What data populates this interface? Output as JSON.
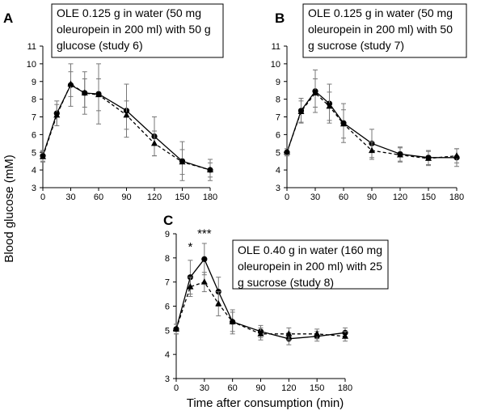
{
  "figure": {
    "ylabel": "Blood glucose (mM)",
    "xlabel": "Time after consumption (min)"
  },
  "chart_data": [
    {
      "panel": "A",
      "type": "line",
      "note_lines": [
        "OLE 0.125 g in water (50 mg",
        "oleuropein in 200 ml) with 50 g",
        "glucose (study 6)"
      ],
      "x": [
        0,
        15,
        30,
        45,
        60,
        90,
        120,
        150,
        180
      ],
      "xticks": [
        0,
        30,
        60,
        90,
        120,
        150,
        180
      ],
      "xlim": [
        0,
        180
      ],
      "ylim": [
        3,
        11
      ],
      "yticks": [
        3,
        4,
        5,
        6,
        7,
        8,
        9,
        10,
        11
      ],
      "series": [
        {
          "name": "solid-circle",
          "marker": "circle",
          "dash": false,
          "values": [
            4.8,
            7.2,
            8.8,
            8.35,
            8.3,
            7.35,
            5.9,
            4.5,
            4.0
          ],
          "errors": [
            0.3,
            0.7,
            1.2,
            1.2,
            1.7,
            1.5,
            1.1,
            1.1,
            0.6
          ]
        },
        {
          "name": "dashed-triangle",
          "marker": "triangle",
          "dash": true,
          "values": [
            4.75,
            7.1,
            8.85,
            8.35,
            8.25,
            7.1,
            5.5,
            4.45,
            4.0
          ],
          "errors": [
            0.3,
            0.6,
            0.7,
            0.8,
            0.9,
            0.8,
            0.7,
            0.7,
            0.4
          ]
        }
      ],
      "annotations": []
    },
    {
      "panel": "B",
      "type": "line",
      "note_lines": [
        "OLE 0.125 g in water (50 mg",
        "oleuropein in 200 ml) with 50",
        "g sucrose (study 7)"
      ],
      "x": [
        0,
        15,
        30,
        45,
        60,
        90,
        120,
        150,
        180
      ],
      "xticks": [
        0,
        30,
        60,
        90,
        120,
        150,
        180
      ],
      "xlim": [
        0,
        180
      ],
      "ylim": [
        3,
        11
      ],
      "yticks": [
        3,
        4,
        5,
        6,
        7,
        8,
        9,
        10,
        11
      ],
      "series": [
        {
          "name": "solid-circle",
          "marker": "circle",
          "dash": false,
          "values": [
            5.0,
            7.35,
            8.45,
            7.75,
            6.65,
            5.5,
            4.9,
            4.7,
            4.7
          ],
          "errors": [
            0.2,
            0.7,
            1.2,
            1.1,
            1.1,
            0.8,
            0.4,
            0.4,
            0.5
          ]
        },
        {
          "name": "dashed-triangle",
          "marker": "triangle",
          "dash": true,
          "values": [
            5.0,
            7.3,
            8.35,
            7.6,
            6.6,
            5.1,
            4.85,
            4.65,
            4.8
          ],
          "errors": [
            0.2,
            0.6,
            0.8,
            0.8,
            0.8,
            0.5,
            0.4,
            0.4,
            0.4
          ]
        }
      ],
      "annotations": []
    },
    {
      "panel": "C",
      "type": "line",
      "note_lines": [
        "OLE 0.40 g in water (160 mg",
        "oleuropein in 200 ml) with 25",
        "g sucrose (study 8)"
      ],
      "x": [
        0,
        15,
        30,
        45,
        60,
        90,
        120,
        150,
        180
      ],
      "xticks": [
        0,
        30,
        60,
        90,
        120,
        150,
        180
      ],
      "xlim": [
        0,
        180
      ],
      "ylim": [
        3,
        9
      ],
      "yticks": [
        3,
        4,
        5,
        6,
        7,
        8,
        9
      ],
      "series": [
        {
          "name": "solid-circle",
          "marker": "circle",
          "dash": false,
          "values": [
            5.05,
            7.2,
            7.95,
            6.6,
            5.35,
            4.95,
            4.65,
            4.75,
            4.9
          ],
          "errors": [
            0.2,
            0.7,
            0.65,
            0.6,
            0.5,
            0.25,
            0.25,
            0.2,
            0.2
          ]
        },
        {
          "name": "dashed-triangle",
          "marker": "triangle",
          "dash": true,
          "values": [
            5.05,
            6.8,
            7.0,
            6.1,
            5.35,
            4.85,
            4.85,
            4.85,
            4.75
          ],
          "errors": [
            0.2,
            0.4,
            0.4,
            0.5,
            0.4,
            0.25,
            0.25,
            0.2,
            0.2
          ]
        }
      ],
      "annotations": [
        {
          "x": 15,
          "y": 8.3,
          "text": "*"
        },
        {
          "x": 30,
          "y": 8.85,
          "text": "***"
        }
      ]
    }
  ]
}
